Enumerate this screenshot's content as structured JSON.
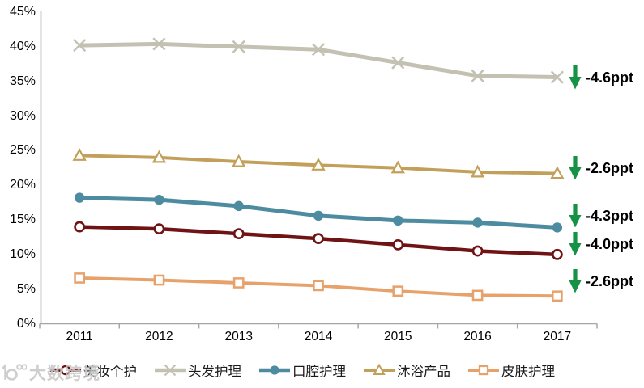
{
  "watermark": {
    "text": "大数跨境"
  },
  "chart_data": {
    "type": "line",
    "x": [
      "2011",
      "2012",
      "2013",
      "2014",
      "2015",
      "2016",
      "2017"
    ],
    "ylim": [
      0,
      45
    ],
    "ytick_step": 5,
    "ytick_labels": [
      "0%",
      "5%",
      "10%",
      "15%",
      "20%",
      "25%",
      "30%",
      "35%",
      "40%",
      "45%"
    ],
    "grid": false,
    "legend_position": "bottom",
    "axis_color": "#a6a6a6",
    "annotation_color": "#169245",
    "series": [
      {
        "id": "beauty-personal-care",
        "name": "美妆个护",
        "color": "#701315",
        "marker": "circle-open",
        "line_width": 4.5,
        "values": [
          14.0,
          13.7,
          13.0,
          12.3,
          11.4,
          10.5,
          10.0
        ],
        "annotation": {
          "label": "-4.0ppt",
          "dy": -13
        }
      },
      {
        "id": "hair-care",
        "name": "头发护理",
        "color": "#c3c2b2",
        "marker": "x",
        "line_width": 5,
        "values": [
          40.2,
          40.4,
          40.0,
          39.6,
          37.7,
          35.8,
          35.6
        ],
        "annotation": {
          "label": "-4.6ppt",
          "dy": 0
        }
      },
      {
        "id": "oral-care",
        "name": "口腔护理",
        "color": "#4d8ca0",
        "marker": "circle",
        "line_width": 5,
        "values": [
          18.2,
          17.9,
          17.0,
          15.6,
          14.9,
          14.6,
          13.9
        ],
        "annotation": {
          "label": "-4.3ppt",
          "dy": -14
        }
      },
      {
        "id": "bath-products",
        "name": "沐浴产品",
        "color": "#c2a059",
        "marker": "triangle-open",
        "line_width": 4,
        "values": [
          24.3,
          24.0,
          23.4,
          22.9,
          22.5,
          21.9,
          21.7
        ],
        "annotation": {
          "label": "-2.6ppt",
          "dy": -7
        }
      },
      {
        "id": "skin-care",
        "name": "皮肤护理",
        "color": "#e7a26c",
        "marker": "square-open",
        "line_width": 4,
        "values": [
          6.6,
          6.3,
          5.9,
          5.5,
          4.7,
          4.1,
          4.0
        ],
        "annotation": {
          "label": "-2.6ppt",
          "dy": -18
        }
      }
    ],
    "legend_order": [
      "beauty-personal-care",
      "hair-care",
      "oral-care",
      "bath-products",
      "skin-care"
    ]
  }
}
